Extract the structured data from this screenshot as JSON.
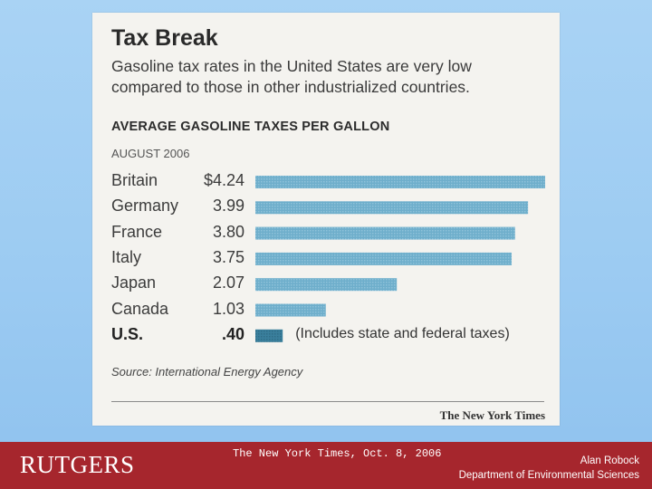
{
  "slide": {
    "footer": {
      "logo": "RUTGERS",
      "citation": "The New York Times, Oct. 8, 2006",
      "author": "Alan Robock",
      "department": "Department of Environmental Sciences",
      "band_color": "#a6262d"
    }
  },
  "chart_data": {
    "type": "bar",
    "orientation": "horizontal",
    "title": "Tax Break",
    "subtitle_lines": [
      "Gasoline tax rates in the United States are very low",
      "compared to those in other industrialized countries."
    ],
    "heading": "AVERAGE GASOLINE TAXES PER GALLON",
    "period": "AUGUST 2006",
    "categories": [
      "Britain",
      "Germany",
      "France",
      "Italy",
      "Japan",
      "Canada",
      "U.S."
    ],
    "values": [
      4.24,
      3.99,
      3.8,
      3.75,
      2.07,
      1.03,
      0.4
    ],
    "value_labels": [
      "$4.24",
      "3.99",
      "3.80",
      "3.75",
      "2.07",
      "1.03",
      ".40"
    ],
    "annotation": "(Includes state and federal taxes)",
    "source": "Source: International Energy Agency",
    "credit": "The New York Times",
    "xlim": [
      0,
      4.24
    ],
    "colors": {
      "bar": "#6eaecb",
      "highlight": "#3a7f9c"
    }
  }
}
